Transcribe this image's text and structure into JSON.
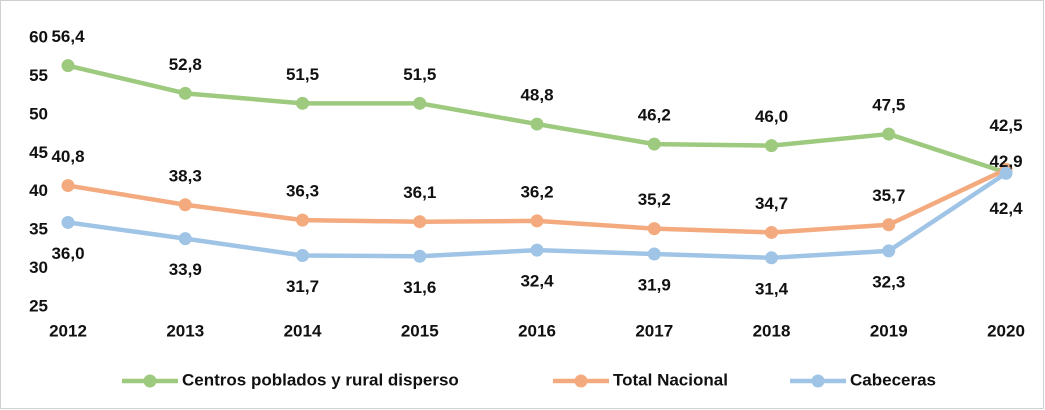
{
  "chart_data": {
    "type": "line",
    "categories": [
      "2012",
      "2013",
      "2014",
      "2015",
      "2016",
      "2017",
      "2018",
      "2019",
      "2020"
    ],
    "series": [
      {
        "name": "Centros poblados y rural disperso",
        "color": "#9dca7e",
        "values": [
          56.4,
          52.8,
          51.5,
          51.5,
          48.8,
          46.2,
          46.0,
          47.5,
          42.5
        ],
        "value_labels": [
          "56,4",
          "52,8",
          "51,5",
          "51,5",
          "48,8",
          "46,2",
          "46,0",
          "47,5",
          "42,5"
        ]
      },
      {
        "name": "Total Nacional",
        "color": "#f3aa7e",
        "values": [
          40.8,
          38.3,
          36.3,
          36.1,
          36.2,
          35.2,
          34.7,
          35.7,
          42.9
        ],
        "value_labels": [
          "40,8",
          "38,3",
          "36,3",
          "36,1",
          "36,2",
          "35,2",
          "34,7",
          "35,7",
          "42,9"
        ]
      },
      {
        "name": "Cabeceras",
        "color": "#9fc4e6",
        "values": [
          36.0,
          33.9,
          31.7,
          31.6,
          32.4,
          31.9,
          31.4,
          32.3,
          42.4
        ],
        "value_labels": [
          "36,0",
          "33,9",
          "31,7",
          "31,6",
          "32,4",
          "31,9",
          "31,4",
          "32,3",
          "42,4"
        ]
      }
    ],
    "ylim": [
      25,
      60
    ],
    "yticks": [
      25,
      30,
      35,
      40,
      45,
      50,
      55,
      60
    ],
    "grid": false,
    "legend": "bottom"
  }
}
